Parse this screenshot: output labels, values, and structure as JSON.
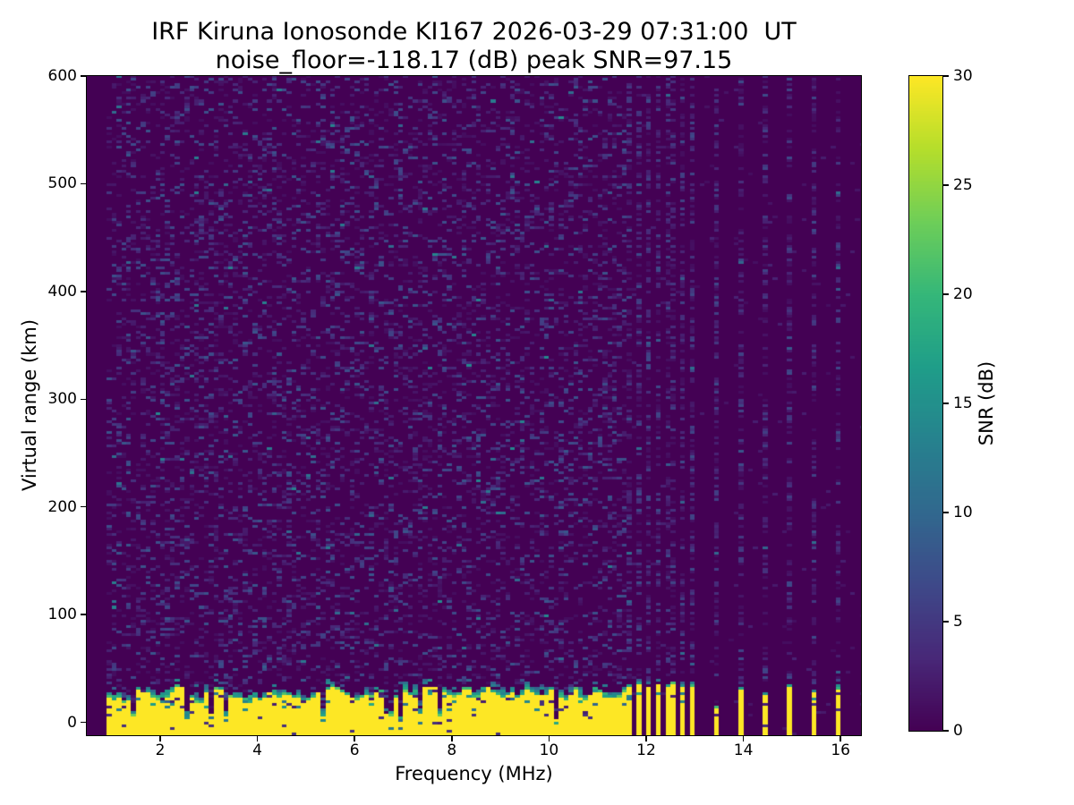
{
  "figure": {
    "title_line1": "IRF Kiruna Ionosonde KI167 2026-03-29 07:31:00  UT",
    "title_line2": "noise_floor=-118.17 (dB) peak SNR=97.15",
    "background_color": "#ffffff",
    "text_color": "#000000"
  },
  "chart_data": {
    "type": "heatmap",
    "title": "IRF Kiruna Ionosonde KI167 2026-03-29 07:31:00  UT",
    "subtitle": "noise_floor=-118.17 (dB) peak SNR=97.15",
    "station": "KI167",
    "timestamp_ut": "2026-03-29 07:31:00",
    "noise_floor_db": -118.17,
    "peak_snr_db": 97.15,
    "xlabel": "Frequency (MHz)",
    "ylabel": "Virtual range (km)",
    "colorbar_label": "SNR (dB)",
    "xlim": [
      0.49,
      16.42
    ],
    "ylim": [
      -12,
      600
    ],
    "clim": [
      0,
      30
    ],
    "xticks": [
      2,
      4,
      6,
      8,
      10,
      12,
      14,
      16
    ],
    "yticks": [
      0,
      100,
      200,
      300,
      400,
      500,
      600
    ],
    "colorbar_ticks": [
      0,
      5,
      10,
      15,
      20,
      25,
      30
    ],
    "grid": false,
    "colormap": "viridis",
    "colormap_stops": [
      "#440154",
      "#482878",
      "#3e4989",
      "#31688e",
      "#26828e",
      "#1f9e89",
      "#35b779",
      "#6ece58",
      "#b5de2b",
      "#fde725"
    ],
    "heatmap": {
      "f_start_mhz": 0.9,
      "df_mhz": 0.1,
      "dr_km": 2.5,
      "snr_max_db": 30,
      "echo_band": {
        "f_end_mhz": 11.6,
        "top_km_min": 15,
        "top_km_max": 36,
        "notch_prob": 0.12,
        "description": "saturated ground/E-region echo band, SNR ~30 dB, ragged top with teal fringe and dark notches"
      },
      "rfi_stripes": [
        {
          "f": 11.65,
          "h": 34
        },
        {
          "f": 11.84,
          "h": 36
        },
        {
          "f": 12.03,
          "h": 33
        },
        {
          "f": 12.22,
          "h": 35
        },
        {
          "f": 12.41,
          "h": 34
        },
        {
          "f": 12.6,
          "h": 36
        },
        {
          "f": 12.79,
          "h": 32
        },
        {
          "f": 12.98,
          "h": 34
        },
        {
          "f": 13.4,
          "h": 13
        },
        {
          "f": 13.92,
          "h": 30
        },
        {
          "f": 14.42,
          "h": 26
        },
        {
          "f": 14.92,
          "h": 33
        },
        {
          "f": 15.42,
          "h": 27
        },
        {
          "f": 15.92,
          "h": 31
        }
      ],
      "noise": {
        "echo_region_speckle_density": 0.24,
        "stripe_column_speckle_density": 0.42,
        "empty_region_speckle_density": 0.012,
        "speckle_db_typical": [
          1,
          8
        ],
        "bright_speckle_db": [
          9,
          14
        ]
      },
      "seed": 167
    }
  }
}
